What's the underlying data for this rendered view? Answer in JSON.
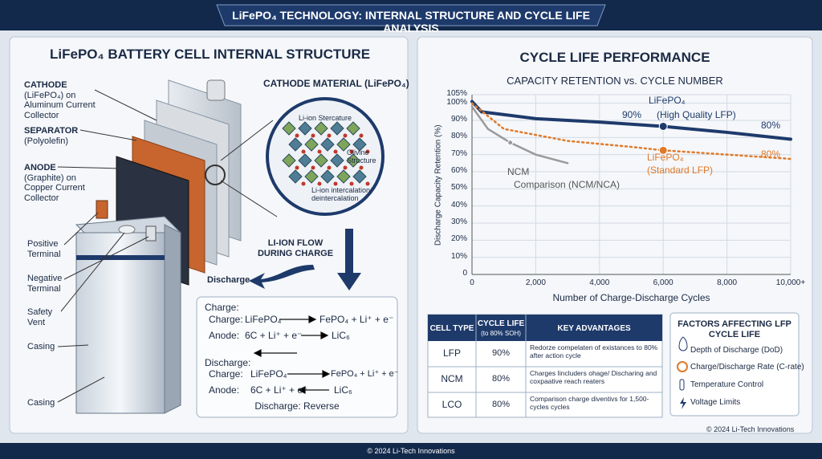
{
  "header": {
    "title": "LiFePO₄ TECHNOLOGY: INTERNAL STRUCTURE AND CYCLE LIFE ANALYSIS"
  },
  "left": {
    "title": "LiFePO₄ BATTERY CELL INTERNAL STRUCTURE",
    "cathode": {
      "name": "CATHODE",
      "detail": "(LiFePO₄) on Aluminum Current Collector"
    },
    "separator": {
      "name": "SEPARATOR",
      "detail": "(Polyolefin)"
    },
    "anode": {
      "name": "ANODE",
      "detail": "(Graphite) on Copper Current Collector"
    },
    "parts": [
      "Positive Terminal",
      "Negative Terminal",
      "Safety Vent",
      "Casing",
      "Casing"
    ],
    "magnifier": {
      "title": "CATHODE MATERIAL (LiFePO₄)",
      "callouts": [
        "Li-ion Stercature",
        "Olivine Structure",
        "Li-ion intercalation/ deintercalation"
      ]
    },
    "flow_label": "LI-ION FLOW DURING CHARGE",
    "discharge_label": "Discharge",
    "reactions": {
      "charge": {
        "heading": "Charge:",
        "rows": [
          [
            "Charge:",
            "LiFePO₄",
            "FePO₄ + Li⁺ + e⁻"
          ],
          [
            "Anode:",
            "6C + Li⁺ + e⁻",
            "LiC₆"
          ]
        ]
      },
      "discharge": {
        "heading": "Discharge:",
        "rows": [
          [
            "Charge:",
            "LiFePO₄",
            "FePO₄ + Li⁺ + e⁻"
          ],
          [
            "Anode:",
            "6C + Li⁺ + e⁻",
            "LiC₆"
          ]
        ],
        "note": "Discharge: Reverse"
      }
    }
  },
  "right": {
    "title": "CYCLE LIFE PERFORMANCE"
  },
  "chart_data": {
    "type": "line",
    "title": "CAPACITY RETENTION vs. CYCLE NUMBER",
    "x_label": "Number of Charge-Discharge Cycles",
    "y_label": "Discharge Capacity Retention (%)",
    "xlim": [
      0,
      10000
    ],
    "ylim": [
      0,
      105
    ],
    "xticks": [
      0,
      {
        "value": 2000,
        "label": "2,000"
      },
      {
        "value": 4000,
        "label": "4,000"
      },
      {
        "value": 6000,
        "label": "6,000"
      },
      {
        "value": 8000,
        "label": "8,000"
      },
      {
        "value": 10000,
        "label": "10,000+"
      }
    ],
    "yticks": [
      0,
      {
        "value": 10,
        "label": "10%"
      },
      {
        "value": 20,
        "label": "20%"
      },
      {
        "value": 30,
        "label": "30%"
      },
      {
        "value": 40,
        "label": "40%"
      },
      {
        "value": 50,
        "label": "50%"
      },
      {
        "value": 60,
        "label": "60%"
      },
      {
        "value": 70,
        "label": "70%"
      },
      {
        "value": 80,
        "label": "80%"
      },
      {
        "value": 90,
        "label": "90%"
      },
      {
        "value": 100,
        "label": "100%"
      },
      {
        "value": 105,
        "label": "105%"
      }
    ],
    "grid": true,
    "series": [
      {
        "color": "#1e3a6b",
        "style": "solid",
        "x": [
          0,
          300,
          2000,
          4000,
          6000,
          8000,
          10000
        ],
        "values": [
          101,
          95,
          91,
          89,
          86.5,
          83,
          79
        ],
        "marker_index": 4
      },
      {
        "color": "#e07a2a",
        "style": "dotted",
        "x": [
          0,
          1000,
          3000,
          5000,
          6000,
          8000,
          10000
        ],
        "values": [
          100,
          85,
          78,
          74.5,
          72.5,
          70,
          67.5
        ],
        "marker_index": 4
      },
      {
        "color": "#9a9a9a",
        "style": "solid",
        "x": [
          0,
          500,
          1200,
          2000,
          3000
        ],
        "values": [
          98,
          85,
          77,
          70,
          65
        ],
        "marker_index": 2
      }
    ],
    "annotations": [
      "LiFePO₄",
      "90%",
      "(High Quality LFP)",
      "80%",
      "LiFePO₄",
      "(Standard LFP)",
      "80%",
      "NCM",
      "Comparison (NCM/NCA)"
    ]
  },
  "table": {
    "header": [
      {
        "title": "CELL TYPE"
      },
      {
        "title": "CYCLE LIFE",
        "sub": "(to 80% SOH)"
      },
      {
        "title": "KEY ADVANTAGES"
      }
    ],
    "rows": [
      [
        "LFP",
        "90%",
        "Redorze compelaten of existances to 80% after action cycle"
      ],
      [
        "NCM",
        "80%",
        "Charges Iincluders ohage/ Discharing and coxpaative reach reaters"
      ],
      [
        "LCO",
        "80%",
        "Comparison charge diventivs for 1,500-cycles cycles"
      ]
    ]
  },
  "factors": {
    "title": "FACTORS AFFECTING LFP CYCLE LIFE",
    "items": [
      "Depth of Discharge (DoD)",
      "Charge/Discharge Rate (C-rate)",
      "Temperature Control",
      "Voltage Limits"
    ]
  },
  "footer": {
    "panel": "© 2024 Li-Tech Innovations",
    "bottom": "© 2024 Li-Tech Innovations"
  }
}
